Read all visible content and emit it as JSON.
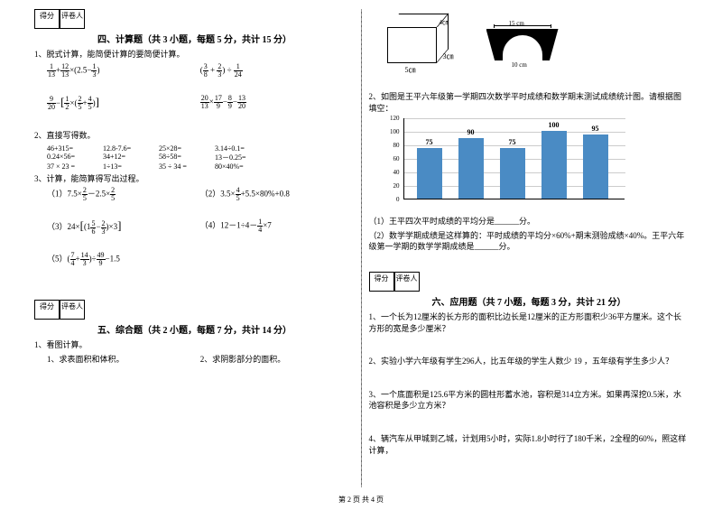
{
  "scorebox": {
    "c1": "得分",
    "c2": "评卷人"
  },
  "sec4": {
    "title": "四、计算题（共 3 小题，每题 5 分，共计 15 分）",
    "q1": "1、脱式计算，能简便计算的要简便计算。",
    "q2": "2、直接写得数。",
    "q2rows": [
      [
        "46+315=",
        "12.8-7.6=",
        "25×28=",
        "3.14÷0.1="
      ],
      [
        "0.24×56=",
        "34+12=",
        "58÷58=",
        "13－0.25="
      ],
      [
        "37 × 23 =",
        "1÷13=",
        "35 ÷ 34 =",
        "80×40%="
      ]
    ],
    "q3": "3、计算，能简算得写出过程。",
    "q3_1_pre": "（1）7.5×",
    "q3_1_mid": "－2.5×",
    "q3_2_pre": "3.5×",
    "q3_2_mid": "+5.5×80%+0.8",
    "q3_3_pre": "24×",
    "q3_3_num": "（3）",
    "q3_4_pre": "（4）12－1÷4－",
    "q3_4_post": "×7",
    "q3_5_num": "（5）"
  },
  "sec5": {
    "title": "五、综合题（共 2 小题，每题 7 分，共计 14 分）",
    "q1": "1、看图计算。",
    "q1a": "1、求表面积和体积。",
    "q1b": "2、求阴影部分的面积。"
  },
  "sec6": {
    "title": "六、应用题（共 7 小题，每题 3 分，共计 21 分）",
    "q1": "1、一个长为12厘米的长方形的面积比边长是12厘米的正方形面积少36平方厘米。这个长方形的宽是多少厘米？",
    "q2": "2、实验小学六年级有学生296人，比五年级的学生人数少 19 ，五年级有学生多少人？",
    "q3": "3、一个底面积是125.6平方米的圆柱形蓄水池，容积是314立方米。如果再深挖0.5米，水池容积是多少立方米？",
    "q4": "4、辆汽车从甲城到乙城，计划用5小时，实际1.8小时行了180千米，2全程的60%，照这样计算，"
  },
  "cube": {
    "h": "4㎝",
    "w": "3㎝",
    "d": "5㎝"
  },
  "arch": {
    "top": "15 cm",
    "bot": "10 cm"
  },
  "chartQ": "2、如图是王平六年级第一学期四次数学平时成绩和数学期末测试成绩统计图。请根据图填空：",
  "chart": {
    "ymax": 120,
    "ystep": 20,
    "bars": [
      {
        "v": 75,
        "lbl": "75"
      },
      {
        "v": 90,
        "lbl": "90"
      },
      {
        "v": 75,
        "lbl": "75"
      },
      {
        "v": 100,
        "lbl": "100"
      },
      {
        "v": 95,
        "lbl": "95"
      }
    ],
    "bar_color": "#4a8bc4"
  },
  "chartSub1": "（1）王平四次平时成绩的平均分是______分。",
  "chartSub2": "（2）数学学期成绩是这样算的：平时成绩的平均分×60%+期末测验成绩×40%。王平六年级第一学期的数学学期成绩是______分。",
  "footer": "第 2 页 共 4 页"
}
